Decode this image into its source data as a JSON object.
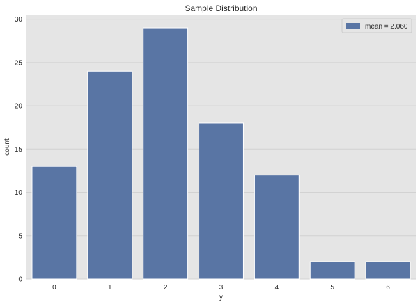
{
  "chart_data": {
    "type": "bar",
    "title": "Sample Distribution",
    "xlabel": "y",
    "ylabel": "count",
    "categories": [
      "0",
      "1",
      "2",
      "3",
      "4",
      "5",
      "6"
    ],
    "values": [
      13,
      24,
      29,
      18,
      12,
      2,
      2
    ],
    "ylim": [
      0,
      30.45
    ],
    "yticks": [
      0,
      5,
      10,
      15,
      20,
      25,
      30
    ],
    "grid": true,
    "legend": {
      "placement": "top-right",
      "entries": [
        {
          "label": "mean =  2.060",
          "color": "#5975a4"
        }
      ]
    },
    "colors": {
      "bar": "#5975a4",
      "plot_background": "#e5e5e5",
      "grid": "#d2d2d2",
      "text": "#262626"
    }
  }
}
